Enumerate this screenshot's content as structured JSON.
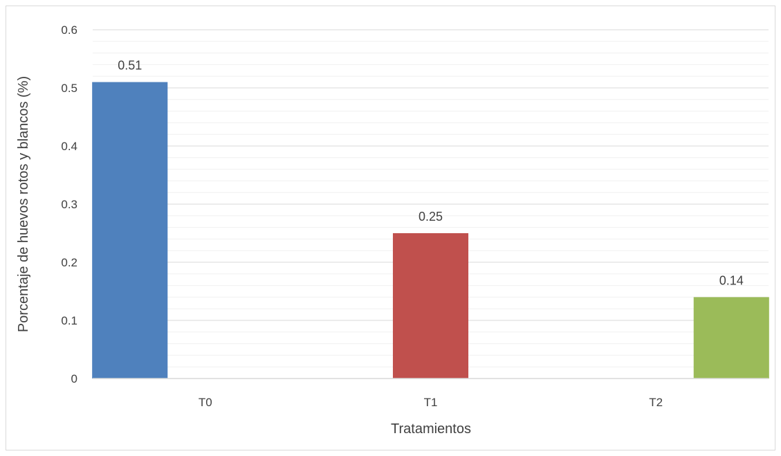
{
  "chart_data": {
    "type": "bar",
    "title": "",
    "xlabel": "Tratamientos",
    "ylabel": "Porcentaje de huevos rotos y blancos (%)",
    "categories": [
      "T0",
      "T1",
      "T2"
    ],
    "values": [
      0.51,
      0.25,
      0.14
    ],
    "data_labels": [
      "0.51",
      "0.25",
      "0.14"
    ],
    "bar_colors": [
      "#4f81bd",
      "#c0504d",
      "#9bbb59"
    ],
    "ylim": [
      0,
      0.6
    ],
    "yticks": [
      0,
      0.1,
      0.2,
      0.3,
      0.4,
      0.5,
      0.6
    ],
    "ytick_labels": [
      "0",
      "0.1",
      "0.2",
      "0.3",
      "0.4",
      "0.5",
      "0.6"
    ],
    "minor_grid_step": 0.02,
    "grid": true,
    "legend": "none"
  }
}
